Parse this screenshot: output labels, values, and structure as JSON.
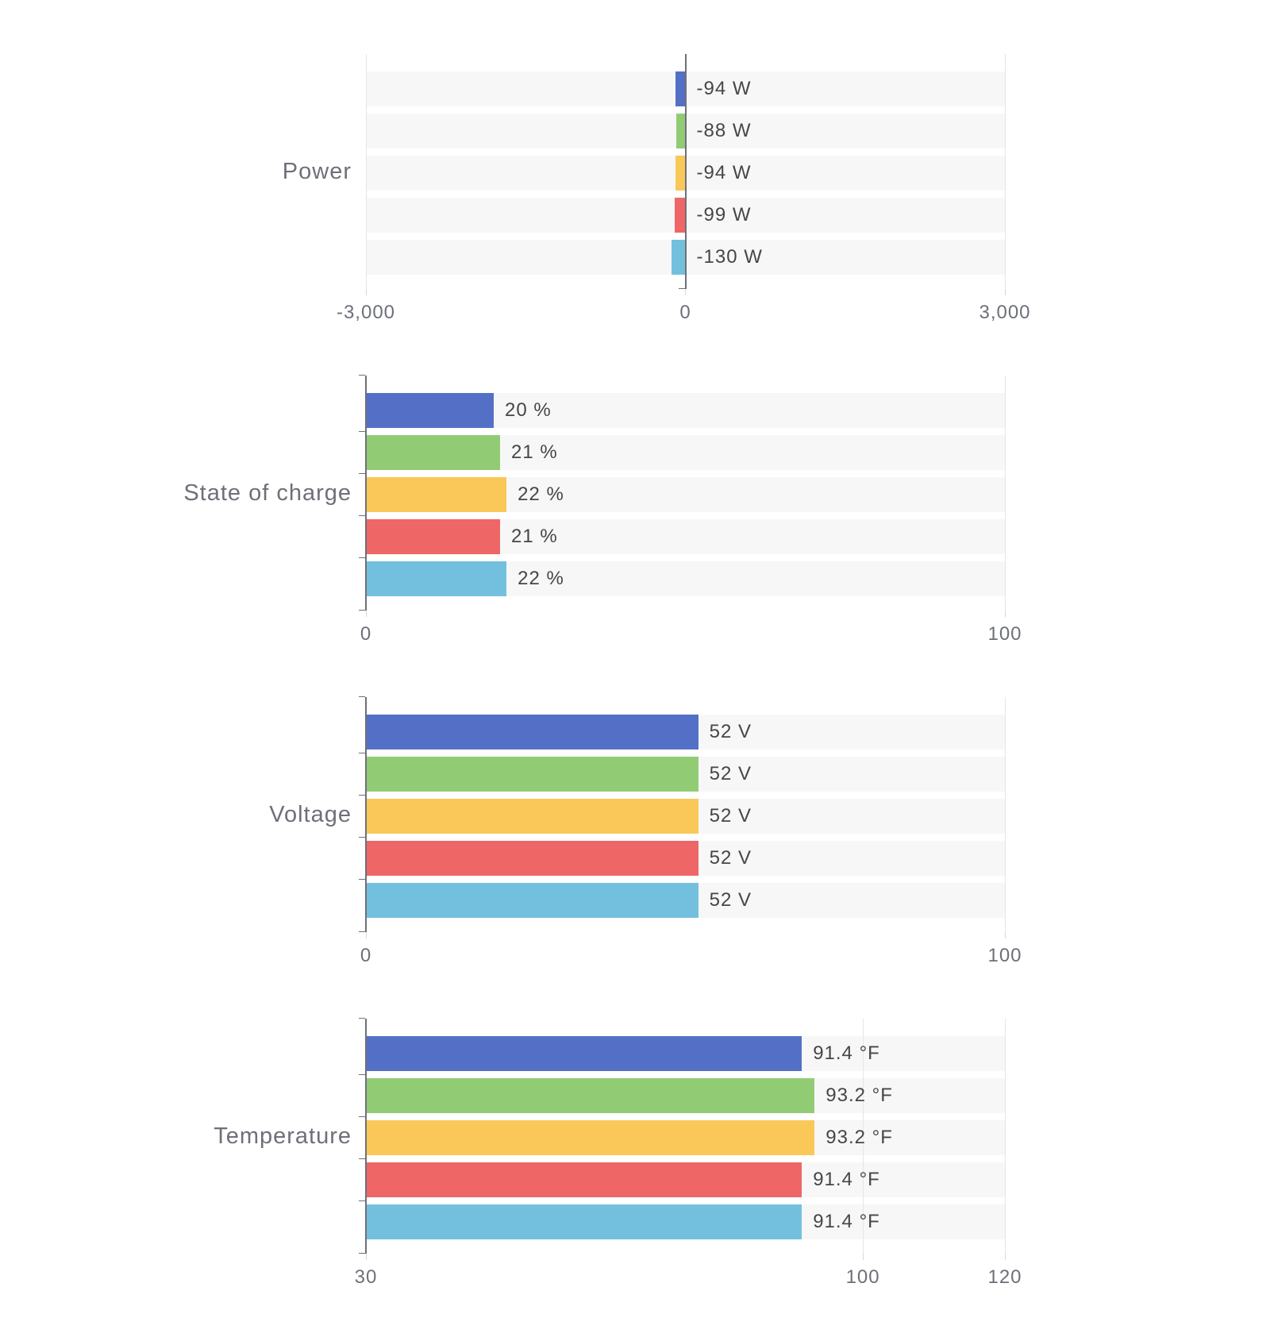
{
  "palette": [
    "#5470c6",
    "#91cc75",
    "#fac858",
    "#ee6666",
    "#73c0de"
  ],
  "colors": {
    "axis_line": "#6E7079",
    "grid_line": "#E0E6F1",
    "tick_label": "#6E7079",
    "value_label": "#464646",
    "row_background": "#f7f7f8"
  },
  "chart_data": [
    {
      "type": "bar",
      "orientation": "horizontal",
      "title": "Power",
      "values": [
        -94,
        -88,
        -94,
        -99,
        -130
      ],
      "bar_labels": [
        "-94 W",
        "-88 W",
        "-94 W",
        "-99 W",
        "-130 W"
      ],
      "unit": "W",
      "xlim": [
        -3000,
        3000
      ],
      "x_ticks": [
        {
          "value": -3000,
          "label": "-3,000",
          "line": "light"
        },
        {
          "value": 0,
          "label": "0",
          "line": "dark"
        },
        {
          "value": 3000,
          "label": "3,000",
          "line": "light"
        }
      ],
      "grid": "edges-and-zero",
      "legend": "none"
    },
    {
      "type": "bar",
      "orientation": "horizontal",
      "title": "State of charge",
      "values": [
        20,
        21,
        22,
        21,
        22
      ],
      "bar_labels": [
        "20 %",
        "21 %",
        "22 %",
        "21 %",
        "22 %"
      ],
      "unit": "%",
      "xlim": [
        0,
        100
      ],
      "x_ticks": [
        {
          "value": 0,
          "label": "0",
          "line": "dark"
        },
        {
          "value": 100,
          "label": "100",
          "line": "light"
        }
      ],
      "grid": "edges",
      "legend": "none"
    },
    {
      "type": "bar",
      "orientation": "horizontal",
      "title": "Voltage",
      "values": [
        52,
        52,
        52,
        52,
        52
      ],
      "bar_labels": [
        "52 V",
        "52 V",
        "52 V",
        "52 V",
        "52 V"
      ],
      "unit": "V",
      "xlim": [
        0,
        100
      ],
      "x_ticks": [
        {
          "value": 0,
          "label": "0",
          "line": "dark"
        },
        {
          "value": 100,
          "label": "100",
          "line": "light"
        }
      ],
      "grid": "edges",
      "legend": "none"
    },
    {
      "type": "bar",
      "orientation": "horizontal",
      "title": "Temperature",
      "values": [
        91.4,
        93.2,
        93.2,
        91.4,
        91.4
      ],
      "bar_labels": [
        "91.4 °F",
        "93.2 °F",
        "93.2 °F",
        "91.4 °F",
        "91.4 °F"
      ],
      "unit": "°F",
      "xlim": [
        30,
        120
      ],
      "x_ticks": [
        {
          "value": 30,
          "label": "30",
          "line": "dark"
        },
        {
          "value": 100,
          "label": "100",
          "line": "light"
        },
        {
          "value": 120,
          "label": "120",
          "line": "light"
        }
      ],
      "grid": "edges",
      "legend": "none"
    }
  ]
}
